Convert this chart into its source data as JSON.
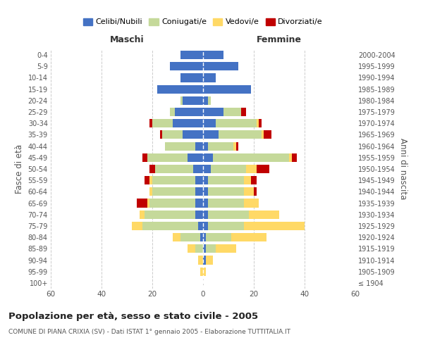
{
  "age_groups": [
    "100+",
    "95-99",
    "90-94",
    "85-89",
    "80-84",
    "75-79",
    "70-74",
    "65-69",
    "60-64",
    "55-59",
    "50-54",
    "45-49",
    "40-44",
    "35-39",
    "30-34",
    "25-29",
    "20-24",
    "15-19",
    "10-14",
    "5-9",
    "0-4"
  ],
  "birth_years": [
    "≤ 1904",
    "1905-1909",
    "1910-1914",
    "1915-1919",
    "1920-1924",
    "1925-1929",
    "1930-1934",
    "1935-1939",
    "1940-1944",
    "1945-1949",
    "1950-1954",
    "1955-1959",
    "1960-1964",
    "1965-1969",
    "1970-1974",
    "1975-1979",
    "1980-1984",
    "1985-1989",
    "1990-1994",
    "1995-1999",
    "2000-2004"
  ],
  "colors": {
    "celibe": "#4472C4",
    "coniugato": "#C5D99A",
    "vedovo": "#FFD966",
    "divorziato": "#C00000"
  },
  "maschi": {
    "celibe": [
      0,
      0,
      0,
      0,
      1,
      2,
      3,
      3,
      3,
      3,
      4,
      6,
      3,
      8,
      12,
      11,
      8,
      18,
      9,
      13,
      9
    ],
    "coniugato": [
      0,
      0,
      0,
      3,
      8,
      22,
      20,
      18,
      17,
      17,
      15,
      16,
      12,
      8,
      8,
      2,
      1,
      0,
      0,
      0,
      0
    ],
    "vedovo": [
      0,
      1,
      2,
      3,
      3,
      4,
      2,
      1,
      1,
      1,
      0,
      0,
      0,
      0,
      0,
      0,
      0,
      0,
      0,
      0,
      0
    ],
    "divorziato": [
      0,
      0,
      0,
      0,
      0,
      0,
      0,
      4,
      0,
      2,
      2,
      2,
      0,
      1,
      1,
      0,
      0,
      0,
      0,
      0,
      0
    ]
  },
  "femmine": {
    "nubile": [
      0,
      0,
      1,
      1,
      1,
      2,
      2,
      2,
      2,
      2,
      3,
      4,
      2,
      6,
      5,
      8,
      2,
      19,
      5,
      14,
      8
    ],
    "coniugata": [
      0,
      0,
      0,
      4,
      10,
      14,
      16,
      14,
      14,
      14,
      14,
      30,
      10,
      17,
      16,
      7,
      1,
      0,
      0,
      0,
      0
    ],
    "vedova": [
      0,
      1,
      3,
      8,
      14,
      24,
      12,
      6,
      4,
      3,
      4,
      1,
      1,
      1,
      1,
      0,
      0,
      0,
      0,
      0,
      0
    ],
    "divorziata": [
      0,
      0,
      0,
      0,
      0,
      0,
      0,
      0,
      1,
      2,
      5,
      2,
      1,
      3,
      1,
      2,
      0,
      0,
      0,
      0,
      0
    ]
  },
  "title": "Popolazione per età, sesso e stato civile - 2005",
  "subtitle": "COMUNE DI PIANA CRIXIA (SV) - Dati ISTAT 1° gennaio 2005 - Elaborazione TUTTITALIA.IT",
  "xlabel_left": "Maschi",
  "xlabel_right": "Femmine",
  "ylabel_left": "Fasce di età",
  "ylabel_right": "Anni di nascita",
  "xlim": 60,
  "background_color": "#ffffff",
  "grid_color": "#cccccc",
  "legend_labels": [
    "Celibi/Nubili",
    "Coniugati/e",
    "Vedovi/e",
    "Divorziati/e"
  ]
}
